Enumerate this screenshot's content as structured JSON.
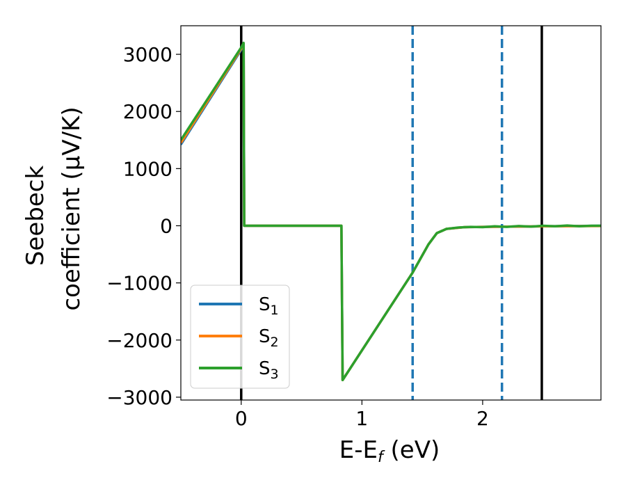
{
  "chart_data": {
    "type": "line",
    "xlabel": {
      "main": "E-E",
      "sub": "f",
      "rest": " (eV)"
    },
    "ylabel": {
      "line1": "Seebeck",
      "line2": "coefficient  (μV/K)"
    },
    "xlim": [
      -0.5,
      2.98
    ],
    "ylim": [
      -3050,
      3500
    ],
    "xticks": [
      0,
      1,
      2
    ],
    "xtick_labels": [
      "0",
      "1",
      "2"
    ],
    "yticks": [
      -3000,
      -2000,
      -1000,
      0,
      1000,
      2000,
      3000
    ],
    "ytick_labels": [
      "−3000",
      "−2000",
      "−1000",
      "0",
      "1000",
      "2000",
      "3000"
    ],
    "grid": false,
    "legend_position": "lower-left",
    "vertical_lines": [
      {
        "x": 0.0,
        "style": "solid",
        "color": "#000000"
      },
      {
        "x": 1.42,
        "style": "dashed",
        "color": "#1f77b4"
      },
      {
        "x": 2.16,
        "style": "dashed",
        "color": "#1f77b4"
      },
      {
        "x": 2.49,
        "style": "solid",
        "color": "#000000"
      }
    ],
    "series": [
      {
        "name": "S",
        "sub": "1",
        "color": "#1f77b4",
        "points": [
          [
            -0.5,
            1420
          ],
          [
            0.0,
            3080
          ],
          [
            0.02,
            3150
          ],
          [
            0.025,
            0
          ],
          [
            0.83,
            0
          ],
          [
            0.84,
            -2700
          ],
          [
            1.42,
            -820
          ],
          [
            1.55,
            -330
          ],
          [
            1.62,
            -130
          ],
          [
            1.7,
            -55
          ],
          [
            1.85,
            -25
          ],
          [
            2.0,
            -20
          ],
          [
            2.2,
            -15
          ],
          [
            2.5,
            -10
          ],
          [
            2.98,
            0
          ]
        ]
      },
      {
        "name": "S",
        "sub": "2",
        "color": "#ff7f0e",
        "points": [
          [
            -0.5,
            1450
          ],
          [
            0.0,
            3100
          ],
          [
            0.02,
            3170
          ],
          [
            0.025,
            0
          ],
          [
            0.83,
            0
          ],
          [
            0.84,
            -2700
          ],
          [
            1.42,
            -820
          ],
          [
            1.55,
            -330
          ],
          [
            1.62,
            -130
          ],
          [
            1.7,
            -55
          ],
          [
            1.85,
            -25
          ],
          [
            2.0,
            -20
          ],
          [
            2.2,
            -15
          ],
          [
            2.5,
            -10
          ],
          [
            2.98,
            -5
          ]
        ]
      },
      {
        "name": "S",
        "sub": "3",
        "color": "#2ca02c",
        "points": [
          [
            -0.5,
            1500
          ],
          [
            0.0,
            3120
          ],
          [
            0.02,
            3200
          ],
          [
            0.025,
            0
          ],
          [
            0.83,
            0
          ],
          [
            0.84,
            -2700
          ],
          [
            1.42,
            -820
          ],
          [
            1.55,
            -330
          ],
          [
            1.62,
            -130
          ],
          [
            1.7,
            -55
          ],
          [
            1.8,
            -30
          ],
          [
            1.9,
            -20
          ],
          [
            2.0,
            -25
          ],
          [
            2.1,
            -10
          ],
          [
            2.2,
            -20
          ],
          [
            2.3,
            -5
          ],
          [
            2.4,
            -15
          ],
          [
            2.5,
            0
          ],
          [
            2.6,
            -10
          ],
          [
            2.7,
            5
          ],
          [
            2.8,
            -10
          ],
          [
            2.9,
            0
          ],
          [
            2.98,
            0
          ]
        ]
      }
    ]
  }
}
